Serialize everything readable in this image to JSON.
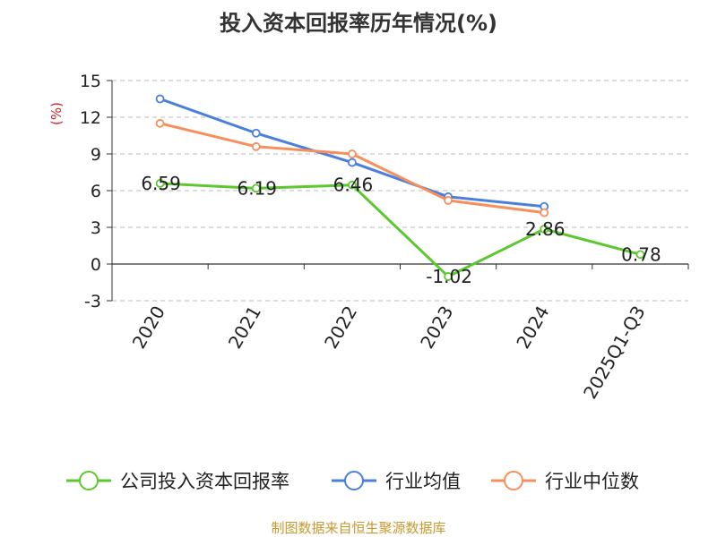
{
  "chart_data": {
    "type": "line",
    "title": "投入资本回报率历年情况(%)",
    "ylabel": "(%)",
    "categories": [
      "2020",
      "2021",
      "2022",
      "2023",
      "2024",
      "2025Q1-Q3"
    ],
    "ylim": [
      -3,
      15
    ],
    "yticks": [
      -3,
      0,
      3,
      6,
      9,
      12,
      15
    ],
    "grid": true,
    "legend_position": "bottom",
    "series": [
      {
        "name": "公司投入资本回报率",
        "color": "#5cc72e",
        "values": [
          6.59,
          6.19,
          6.46,
          -1.02,
          2.86,
          0.78
        ],
        "labels": [
          "6.59",
          "6.19",
          "6.46",
          "-1.02",
          "2.86",
          "0.78"
        ]
      },
      {
        "name": "行业均值",
        "color": "#4a7fdc",
        "values": [
          13.5,
          10.7,
          8.3,
          5.5,
          4.7,
          null
        ]
      },
      {
        "name": "行业中位数",
        "color": "#f78f5c",
        "values": [
          11.5,
          9.6,
          9.0,
          5.2,
          4.2,
          null
        ]
      }
    ]
  },
  "colors": {
    "unit": "#cc2222",
    "source": "#c8992c",
    "axis": "#333333",
    "grid": "#bbbbbb"
  },
  "source": "制图数据来自恒生聚源数据库"
}
